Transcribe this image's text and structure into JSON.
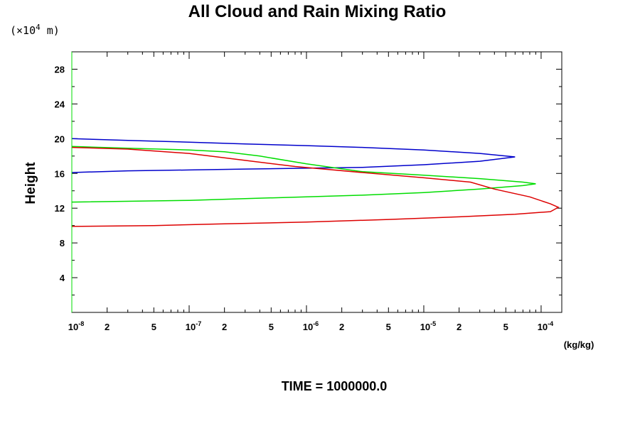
{
  "chart_data": {
    "type": "line",
    "title": "All Cloud and Rain Mixing Ratio",
    "ylabel": "Height",
    "y_unit_prefix": "(×10",
    "y_unit_exponent": "4",
    "y_unit_suffix": " m)",
    "x_unit": "(kg/kg)",
    "x_scale": "log",
    "xlim": [
      1e-08,
      0.00015
    ],
    "ylim": [
      0,
      30
    ],
    "y_ticks": [
      4,
      8,
      12,
      16,
      20,
      24,
      28
    ],
    "x_tick_labels": [
      {
        "value": 1e-08,
        "base": "10",
        "exp": "-8"
      },
      {
        "value": 2e-08,
        "base": "2",
        "exp": ""
      },
      {
        "value": 5e-08,
        "base": "5",
        "exp": ""
      },
      {
        "value": 1e-07,
        "base": "10",
        "exp": "-7"
      },
      {
        "value": 2e-07,
        "base": "2",
        "exp": ""
      },
      {
        "value": 5e-07,
        "base": "5",
        "exp": ""
      },
      {
        "value": 1e-06,
        "base": "10",
        "exp": "-6"
      },
      {
        "value": 2e-06,
        "base": "2",
        "exp": ""
      },
      {
        "value": 5e-06,
        "base": "5",
        "exp": ""
      },
      {
        "value": 1e-05,
        "base": "10",
        "exp": "-5"
      },
      {
        "value": 2e-05,
        "base": "2",
        "exp": ""
      },
      {
        "value": 5e-05,
        "base": "5",
        "exp": ""
      },
      {
        "value": 0.0001,
        "base": "10",
        "exp": "-4"
      }
    ],
    "grid": false,
    "series": [
      {
        "color": "#0000cc",
        "points": [
          [
            1e-08,
            20.0
          ],
          [
            3e-08,
            19.8
          ],
          [
            1e-07,
            19.6
          ],
          [
            3e-07,
            19.4
          ],
          [
            1e-06,
            19.2
          ],
          [
            3e-06,
            19.0
          ],
          [
            1e-05,
            18.7
          ],
          [
            3e-05,
            18.3
          ],
          [
            6e-05,
            17.9
          ],
          [
            3e-05,
            17.4
          ],
          [
            1e-05,
            17.0
          ],
          [
            3e-06,
            16.7
          ],
          [
            1e-06,
            16.6
          ],
          [
            3e-07,
            16.5
          ],
          [
            1e-07,
            16.4
          ],
          [
            3e-08,
            16.3
          ],
          [
            1e-08,
            16.1
          ]
        ]
      },
      {
        "color": "#00dd00",
        "points": [
          [
            1e-08,
            19.1
          ],
          [
            3e-08,
            18.9
          ],
          [
            1e-07,
            18.7
          ],
          [
            2e-07,
            18.5
          ],
          [
            4e-07,
            18.0
          ],
          [
            1e-06,
            17.1
          ],
          [
            3e-06,
            16.2
          ],
          [
            1e-05,
            15.8
          ],
          [
            3e-05,
            15.4
          ],
          [
            7e-05,
            15.0
          ],
          [
            9e-05,
            14.8
          ],
          [
            7e-05,
            14.6
          ],
          [
            3e-05,
            14.2
          ],
          [
            1e-05,
            13.8
          ],
          [
            3e-06,
            13.5
          ],
          [
            1e-06,
            13.3
          ],
          [
            3e-07,
            13.1
          ],
          [
            1e-07,
            12.9
          ],
          [
            1e-08,
            12.7
          ]
        ]
      },
      {
        "color": "#dd0000",
        "points": [
          [
            1e-08,
            19.0
          ],
          [
            3e-08,
            18.8
          ],
          [
            1e-07,
            18.3
          ],
          [
            3e-07,
            17.5
          ],
          [
            8e-07,
            16.8
          ],
          [
            3e-06,
            16.1
          ],
          [
            1e-05,
            15.5
          ],
          [
            2.5e-05,
            15.0
          ],
          [
            4e-05,
            14.2
          ],
          [
            8e-05,
            13.3
          ],
          [
            0.00012,
            12.5
          ],
          [
            0.00014,
            12.1
          ],
          [
            0.00012,
            11.6
          ],
          [
            6e-05,
            11.3
          ],
          [
            2e-05,
            11.0
          ],
          [
            5e-06,
            10.7
          ],
          [
            1e-06,
            10.4
          ],
          [
            2e-07,
            10.2
          ],
          [
            5e-08,
            10.0
          ],
          [
            1e-08,
            9.9
          ]
        ]
      }
    ]
  },
  "footer": {
    "time_label": "TIME = 1000000.0"
  }
}
